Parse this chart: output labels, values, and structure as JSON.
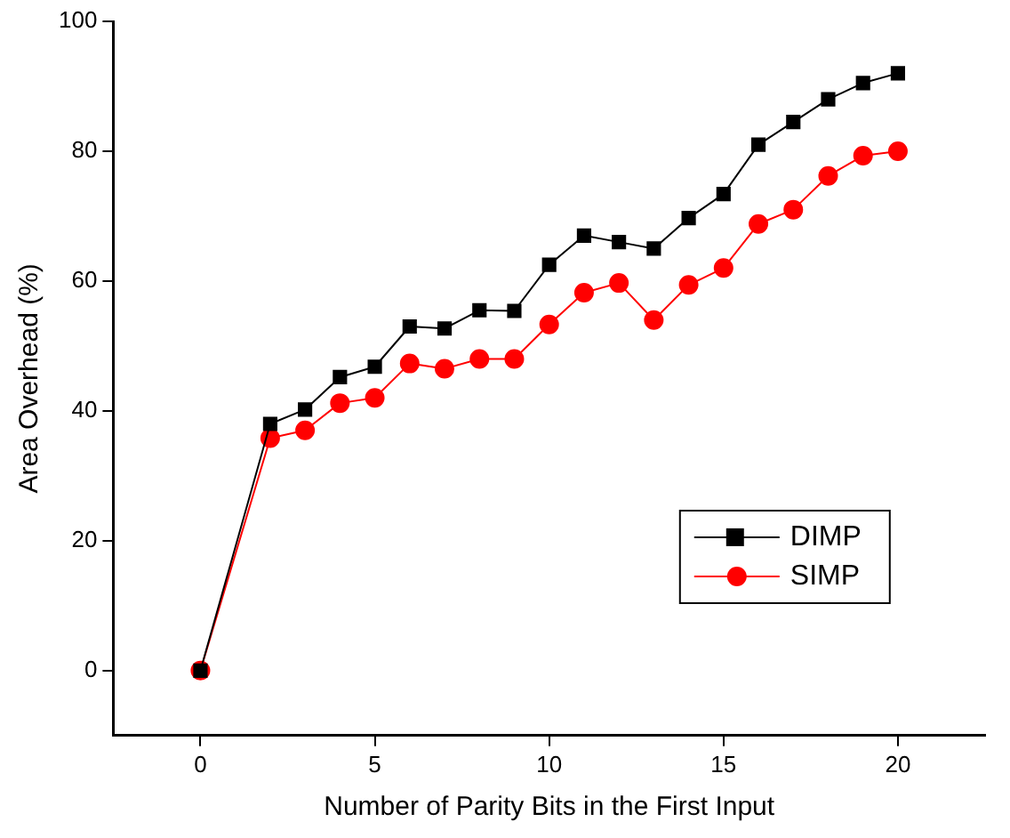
{
  "chart_data": {
    "type": "line",
    "xlabel": "Number of Parity Bits in the First Input",
    "ylabel": "Area Overhead (%)",
    "xlim": [
      -2.5,
      22.5
    ],
    "xticks": [
      0,
      5,
      10,
      15,
      20
    ],
    "ylim": [
      -10,
      100
    ],
    "yticks": [
      0,
      20,
      40,
      60,
      80,
      100
    ],
    "grid": false,
    "legend": "bottom right",
    "line_style": "solid",
    "series": [
      {
        "name": "DIMP",
        "color": "#000000",
        "marker": "square",
        "x": [
          0,
          2,
          3,
          4,
          5,
          6,
          7,
          8,
          9,
          10,
          11,
          12,
          13,
          14,
          15,
          16,
          17,
          18,
          19,
          20
        ],
        "values": [
          0,
          38,
          40.2,
          45.2,
          46.8,
          53,
          52.7,
          55.5,
          55.4,
          62.5,
          67,
          66,
          65,
          69.7,
          73.4,
          81,
          84.5,
          88,
          90.5,
          92
        ]
      },
      {
        "name": "SIMP",
        "color": "#ff0000",
        "marker": "circle",
        "x": [
          0,
          2,
          3,
          4,
          5,
          6,
          7,
          8,
          9,
          10,
          11,
          12,
          13,
          14,
          15,
          16,
          17,
          18,
          19,
          20
        ],
        "values": [
          0,
          35.8,
          37,
          41.2,
          42,
          47.3,
          46.5,
          48,
          48,
          53.3,
          58.2,
          59.7,
          54,
          59.4,
          62,
          68.8,
          71,
          76.2,
          79.3,
          80
        ]
      }
    ]
  }
}
